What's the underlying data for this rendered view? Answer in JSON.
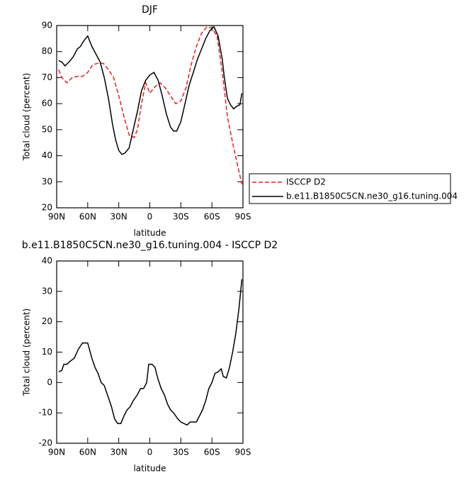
{
  "chart_data": [
    {
      "type": "line",
      "title": "DJF",
      "y_label": "Total cloud (percent)",
      "x_label": "latitude",
      "xlim": [
        90,
        -90
      ],
      "ylim": [
        20,
        90
      ],
      "xticks": [
        {
          "value": 90,
          "label": "90N"
        },
        {
          "value": 60,
          "label": "60N"
        },
        {
          "value": 30,
          "label": "30N"
        },
        0,
        {
          "value": -30,
          "label": "30S"
        },
        {
          "value": -60,
          "label": "60S"
        },
        {
          "value": -90,
          "label": "90S"
        }
      ],
      "yticks": [
        20,
        30,
        40,
        50,
        60,
        70,
        80,
        90
      ],
      "legend": "outside-right",
      "series": [
        {
          "name": "ISCCP D2",
          "color": "#e8201f",
          "dash": true,
          "x": [
            88,
            85,
            80,
            75,
            70,
            65,
            60,
            55,
            50,
            45,
            40,
            35,
            30,
            25,
            20,
            15,
            12,
            8,
            4,
            0,
            -5,
            -10,
            -15,
            -20,
            -25,
            -30,
            -35,
            -40,
            -45,
            -50,
            -55,
            -60,
            -65,
            -70,
            -75,
            -80,
            -85,
            -89
          ],
          "values": [
            73,
            70,
            68,
            70,
            70.5,
            70.5,
            72,
            75,
            75.5,
            75.5,
            73,
            70,
            63,
            55,
            48,
            47,
            50,
            60,
            68,
            64,
            66.5,
            68,
            66,
            63,
            60,
            61,
            66,
            75,
            82,
            87,
            89.5,
            89,
            86,
            72,
            55,
            45,
            36,
            29
          ]
        },
        {
          "name": "b.e11.B1850C5CN.ne30_g16.tuning.004",
          "color": "#000000",
          "dash": false,
          "x": [
            88,
            85,
            82,
            78,
            74,
            70,
            67,
            64,
            60,
            56,
            52,
            48,
            44,
            40,
            36,
            33,
            30,
            27,
            24,
            20,
            16,
            12,
            8,
            4,
            0,
            -4,
            -8,
            -12,
            -16,
            -20,
            -23,
            -26,
            -30,
            -34,
            -38,
            -42,
            -46,
            -50,
            -54,
            -58,
            -62,
            -66,
            -70,
            -72,
            -75,
            -78,
            -81,
            -84,
            -87,
            -89
          ],
          "values": [
            76.5,
            76,
            74.5,
            76,
            78,
            81,
            82,
            84,
            86,
            82,
            79,
            76,
            70,
            62,
            52,
            46,
            42,
            40.5,
            41,
            43,
            50,
            57,
            65,
            69,
            71,
            72,
            69,
            63,
            56,
            51,
            49.5,
            49.5,
            53,
            60,
            67,
            72,
            77,
            81,
            85,
            88,
            89.5,
            86,
            77,
            70,
            62,
            59.5,
            58,
            59,
            59.5,
            64
          ]
        }
      ]
    },
    {
      "type": "line",
      "title": "b.e11.B1850C5CN.ne30_g16.tuning.004 - ISCCP D2",
      "y_label": "Total cloud (percent)",
      "x_label": "latitude",
      "xlim": [
        90,
        -90
      ],
      "ylim": [
        -20,
        40
      ],
      "xticks": [
        {
          "value": 90,
          "label": "90N"
        },
        {
          "value": 60,
          "label": "60N"
        },
        {
          "value": 30,
          "label": "30N"
        },
        0,
        {
          "value": -30,
          "label": "30S"
        },
        {
          "value": -60,
          "label": "60S"
        },
        {
          "value": -90,
          "label": "90S"
        }
      ],
      "yticks": [
        -20,
        -10,
        0,
        10,
        20,
        30,
        40
      ],
      "series": [
        {
          "color": "#000000",
          "dash": false,
          "x": [
            88,
            85,
            83,
            80,
            77,
            73,
            69,
            65,
            60,
            56,
            53,
            50,
            47,
            44,
            41,
            37,
            34,
            31,
            28,
            25,
            22,
            19,
            16,
            12,
            9,
            6,
            3,
            1,
            -2,
            -5,
            -8,
            -11,
            -14,
            -17,
            -20,
            -23,
            -27,
            -30,
            -33,
            -36,
            -39,
            -42,
            -45,
            -48,
            -51,
            -54,
            -57,
            -60,
            -63,
            -66,
            -69,
            -71,
            -74,
            -77,
            -80,
            -83,
            -86,
            -89
          ],
          "values": [
            3.5,
            4,
            6,
            6,
            7,
            8,
            11,
            13,
            13,
            8,
            5,
            3,
            0,
            -1,
            -4,
            -8,
            -12,
            -13.5,
            -13.5,
            -11,
            -9,
            -8,
            -6,
            -4,
            -2,
            -2,
            0,
            6,
            6,
            5,
            1,
            -2,
            -4,
            -7,
            -9,
            -10,
            -12,
            -13,
            -13.5,
            -14,
            -13,
            -13,
            -13,
            -11,
            -9,
            -6,
            -2,
            0,
            3,
            3.5,
            4.5,
            2,
            1.5,
            5,
            10,
            16,
            24,
            34
          ]
        }
      ]
    }
  ]
}
